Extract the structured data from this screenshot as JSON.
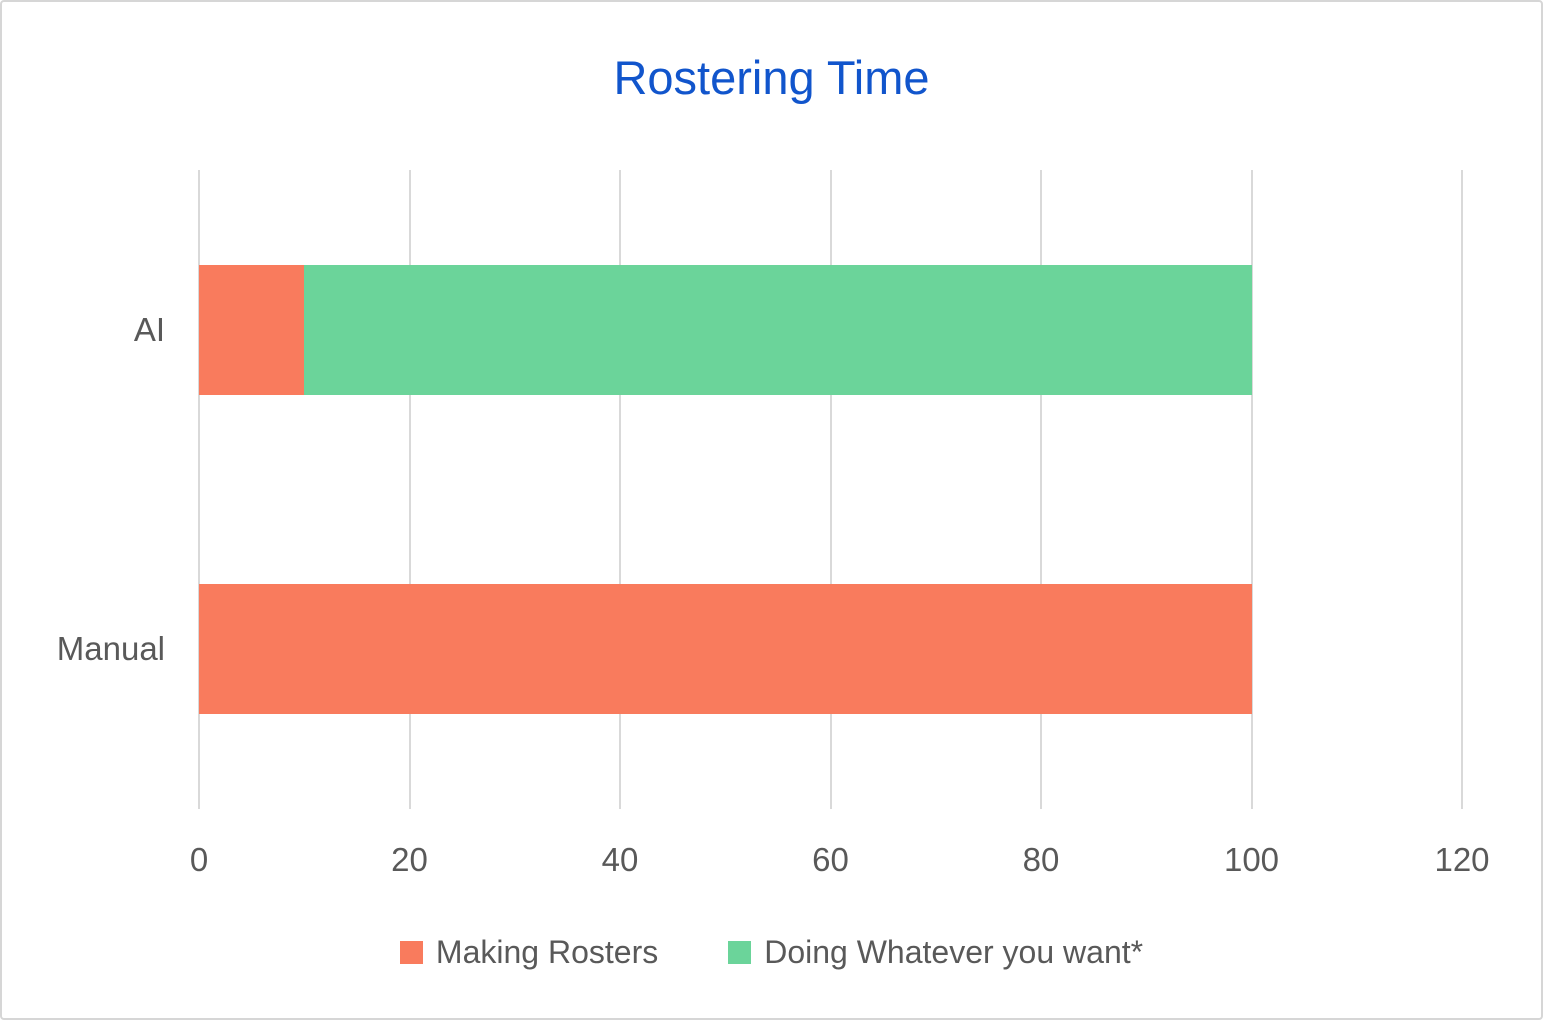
{
  "page": {
    "background": "#ffffff",
    "border_color": "#d6d6d6"
  },
  "chart_data": {
    "type": "bar",
    "orientation": "horizontal",
    "stacked": true,
    "title": "Rostering Time",
    "title_color": "#1155cc",
    "text_color": "#595959",
    "gridline_color": "#d9d9d9",
    "grid": "vertical",
    "categories": [
      "AI",
      "Manual"
    ],
    "series": [
      {
        "name": "Making Rosters",
        "color": "#f97b5d",
        "values": [
          10,
          100
        ]
      },
      {
        "name": "Doing Whatever you want*",
        "color": "#6bd49a",
        "values": [
          90,
          0
        ]
      }
    ],
    "xlim": [
      0,
      120
    ],
    "x_ticks": [
      0,
      20,
      40,
      60,
      80,
      100,
      120
    ],
    "legend_position": "bottom"
  }
}
